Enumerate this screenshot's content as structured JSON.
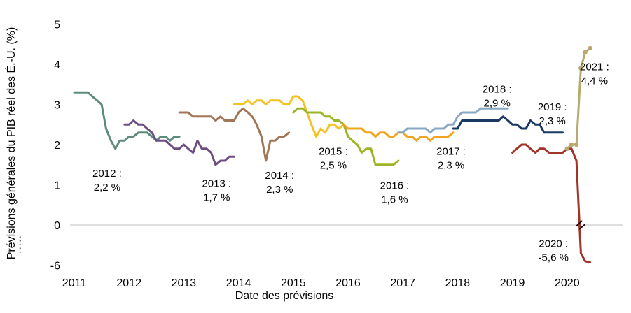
{
  "chart_data": {
    "type": "line",
    "title": "",
    "xlabel": "Date des prévisions",
    "ylabel": "Prévisions générales du PIB réel des É.-U. (%)",
    "x_ticks": [
      "2011",
      "2012",
      "2013",
      "2014",
      "2015",
      "2016",
      "2017",
      "2018",
      "2019",
      "2020"
    ],
    "y_ticks": [
      "5",
      "4",
      "3",
      "2",
      "1",
      "0",
      "-6"
    ],
    "y_axis_note": "·····",
    "xlim": [
      2011.0,
      2021.0
    ],
    "ylim": [
      -1,
      5
    ],
    "grid": false,
    "legend": "none",
    "series": [
      {
        "name": "2012 : 2,2 %",
        "color": "#5e8c7c",
        "x": [
          2011.0,
          2011.08,
          2011.17,
          2011.25,
          2011.33,
          2011.42,
          2011.5,
          2011.58,
          2011.67,
          2011.75,
          2011.83,
          2011.92,
          2012.0,
          2012.08,
          2012.17,
          2012.25,
          2012.33,
          2012.42,
          2012.5,
          2012.58,
          2012.67,
          2012.75,
          2012.83,
          2012.92
        ],
        "y": [
          3.3,
          3.3,
          3.3,
          3.3,
          3.2,
          3.1,
          3.0,
          2.4,
          2.1,
          1.9,
          2.1,
          2.1,
          2.2,
          2.2,
          2.3,
          2.3,
          2.3,
          2.2,
          2.1,
          2.2,
          2.2,
          2.1,
          2.2,
          2.2
        ]
      },
      {
        "name": "2013 : 1,7 %",
        "color": "#6c4e82",
        "x": [
          2011.92,
          2012.0,
          2012.08,
          2012.17,
          2012.25,
          2012.33,
          2012.42,
          2012.5,
          2012.58,
          2012.67,
          2012.75,
          2012.83,
          2012.92,
          2013.0,
          2013.08,
          2013.17,
          2013.25,
          2013.33,
          2013.42,
          2013.5,
          2013.58,
          2013.67,
          2013.75,
          2013.83,
          2013.92
        ],
        "y": [
          2.5,
          2.5,
          2.6,
          2.5,
          2.5,
          2.4,
          2.3,
          2.1,
          2.1,
          2.1,
          2.0,
          1.9,
          1.9,
          2.0,
          1.9,
          1.8,
          2.1,
          1.9,
          1.9,
          1.8,
          1.5,
          1.6,
          1.6,
          1.7,
          1.7
        ]
      },
      {
        "name": "2014 : 2,3 %",
        "color": "#a07657",
        "x": [
          2012.92,
          2013.0,
          2013.08,
          2013.17,
          2013.25,
          2013.33,
          2013.42,
          2013.5,
          2013.58,
          2013.67,
          2013.75,
          2013.83,
          2013.92,
          2014.0,
          2014.08,
          2014.17,
          2014.25,
          2014.33,
          2014.42,
          2014.5,
          2014.58,
          2014.67,
          2014.75,
          2014.83,
          2014.92
        ],
        "y": [
          2.8,
          2.8,
          2.8,
          2.7,
          2.7,
          2.7,
          2.7,
          2.7,
          2.6,
          2.7,
          2.6,
          2.6,
          2.6,
          2.8,
          2.9,
          2.8,
          2.7,
          2.5,
          2.2,
          1.6,
          2.1,
          2.1,
          2.2,
          2.2,
          2.3
        ]
      },
      {
        "name": "2015 : 2,5 %",
        "color": "#f3c223",
        "x": [
          2013.92,
          2014.0,
          2014.08,
          2014.17,
          2014.25,
          2014.33,
          2014.42,
          2014.5,
          2014.58,
          2014.67,
          2014.75,
          2014.83,
          2014.92,
          2015.0,
          2015.08,
          2015.17,
          2015.25,
          2015.33,
          2015.42,
          2015.5,
          2015.58,
          2015.67,
          2015.75,
          2015.83,
          2015.92
        ],
        "y": [
          3.0,
          3.0,
          3.0,
          3.1,
          3.0,
          3.1,
          3.1,
          3.0,
          3.1,
          3.1,
          3.1,
          3.0,
          3.0,
          3.2,
          3.2,
          3.1,
          2.8,
          2.5,
          2.2,
          2.4,
          2.3,
          2.5,
          2.5,
          2.4,
          2.5
        ]
      },
      {
        "name": "2016 : 1,6 %",
        "color": "#9cb526",
        "x": [
          2015.0,
          2015.08,
          2015.17,
          2015.25,
          2015.33,
          2015.42,
          2015.5,
          2015.58,
          2015.67,
          2015.75,
          2015.83,
          2015.92,
          2016.0,
          2016.08,
          2016.17,
          2016.25,
          2016.33,
          2016.42,
          2016.5,
          2016.58,
          2016.67,
          2016.75,
          2016.83,
          2016.92
        ],
        "y": [
          2.8,
          2.9,
          2.9,
          2.8,
          2.8,
          2.8,
          2.8,
          2.7,
          2.7,
          2.6,
          2.6,
          2.5,
          2.2,
          2.1,
          2.0,
          1.8,
          1.9,
          1.9,
          1.5,
          1.5,
          1.5,
          1.5,
          1.5,
          1.6
        ]
      },
      {
        "name": "2017 : 2,3 %",
        "color": "#f0a51c",
        "x": [
          2015.92,
          2016.0,
          2016.08,
          2016.17,
          2016.25,
          2016.33,
          2016.42,
          2016.5,
          2016.58,
          2016.67,
          2016.75,
          2016.83,
          2016.92,
          2017.0,
          2017.08,
          2017.17,
          2017.25,
          2017.33,
          2017.42,
          2017.5,
          2017.58,
          2017.67,
          2017.75,
          2017.83,
          2017.92
        ],
        "y": [
          2.5,
          2.4,
          2.4,
          2.4,
          2.4,
          2.3,
          2.3,
          2.2,
          2.3,
          2.3,
          2.2,
          2.2,
          2.3,
          2.3,
          2.2,
          2.2,
          2.1,
          2.2,
          2.2,
          2.1,
          2.2,
          2.2,
          2.2,
          2.2,
          2.3
        ]
      },
      {
        "name": "2018 : 2,9 %",
        "color": "#86a8c3",
        "x": [
          2016.92,
          2017.0,
          2017.08,
          2017.17,
          2017.25,
          2017.33,
          2017.42,
          2017.5,
          2017.58,
          2017.67,
          2017.75,
          2017.83,
          2017.92,
          2018.0,
          2018.08,
          2018.17,
          2018.25,
          2018.33,
          2018.42,
          2018.5,
          2018.58,
          2018.67,
          2018.75,
          2018.83,
          2018.92
        ],
        "y": [
          2.3,
          2.3,
          2.4,
          2.4,
          2.4,
          2.4,
          2.4,
          2.3,
          2.4,
          2.4,
          2.4,
          2.5,
          2.5,
          2.7,
          2.8,
          2.8,
          2.8,
          2.8,
          2.9,
          2.9,
          2.9,
          2.9,
          2.9,
          2.9,
          2.9
        ]
      },
      {
        "name": "2019 : 2,3 %",
        "color": "#1a3a63",
        "x": [
          2017.92,
          2018.0,
          2018.08,
          2018.17,
          2018.25,
          2018.33,
          2018.42,
          2018.5,
          2018.58,
          2018.67,
          2018.75,
          2018.83,
          2018.92,
          2019.0,
          2019.08,
          2019.17,
          2019.25,
          2019.33,
          2019.42,
          2019.5,
          2019.58,
          2019.67,
          2019.75,
          2019.83,
          2019.92
        ],
        "y": [
          2.4,
          2.4,
          2.6,
          2.6,
          2.6,
          2.6,
          2.6,
          2.6,
          2.6,
          2.6,
          2.6,
          2.7,
          2.6,
          2.5,
          2.5,
          2.4,
          2.4,
          2.6,
          2.5,
          2.5,
          2.3,
          2.3,
          2.3,
          2.3,
          2.3
        ]
      },
      {
        "name": "2020 : -5,6 %",
        "color": "#a2342a",
        "x": [
          2019.0,
          2019.08,
          2019.17,
          2019.25,
          2019.33,
          2019.42,
          2019.5,
          2019.58,
          2019.67,
          2019.75,
          2019.83,
          2019.92,
          2020.0,
          2020.08,
          2020.17,
          2020.25,
          2020.33,
          2020.42
        ],
        "y": [
          1.8,
          1.9,
          2.0,
          2.0,
          1.9,
          1.8,
          1.9,
          1.9,
          1.8,
          1.8,
          1.8,
          1.8,
          1.9,
          1.9,
          1.6,
          -0.7,
          -0.9,
          -0.93
        ]
      },
      {
        "name": "2021 : 4,4 %",
        "color": "#b8a970",
        "marker": true,
        "x": [
          2020.0,
          2020.08,
          2020.17,
          2020.25,
          2020.33,
          2020.42
        ],
        "y": [
          1.9,
          2.0,
          2.0,
          3.9,
          4.3,
          4.4
        ]
      }
    ],
    "annotations": [
      {
        "lines": [
          "2012 :",
          "2,2 %"
        ],
        "x": 2011.6,
        "y": 1.2,
        "anchor": "middle"
      },
      {
        "lines": [
          "2013 :",
          "1,7 %"
        ],
        "x": 2013.6,
        "y": 0.95,
        "anchor": "middle"
      },
      {
        "lines": [
          "2014 :",
          "2,3 %"
        ],
        "x": 2014.75,
        "y": 1.15,
        "anchor": "middle"
      },
      {
        "lines": [
          "2015 :",
          "2,5 %"
        ],
        "x": 2015.73,
        "y": 1.75,
        "anchor": "middle"
      },
      {
        "lines": [
          "2016 :",
          "1,6 %"
        ],
        "x": 2016.85,
        "y": 0.9,
        "anchor": "middle"
      },
      {
        "lines": [
          "2017 :",
          "2,3 %"
        ],
        "x": 2017.88,
        "y": 1.75,
        "anchor": "middle"
      },
      {
        "lines": [
          "2018 :",
          "2,9 %"
        ],
        "x": 2018.72,
        "y": 3.3,
        "anchor": "middle"
      },
      {
        "lines": [
          "2019 :",
          "2,3 %"
        ],
        "x": 2019.73,
        "y": 2.85,
        "anchor": "middle"
      },
      {
        "lines": [
          "2020 :",
          "-5,6 %"
        ],
        "x": 2019.75,
        "y": -0.55,
        "anchor": "middle"
      },
      {
        "lines": [
          "2021 :",
          "4,4 %"
        ],
        "x": 2020.5,
        "y": 3.85,
        "anchor": "middle"
      }
    ],
    "axis_break": {
      "x": 2020.25,
      "y": 0
    }
  }
}
